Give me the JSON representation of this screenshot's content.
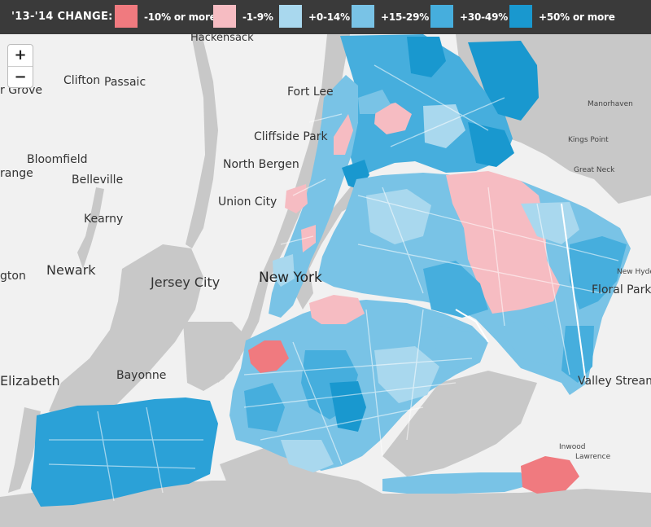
{
  "legend": {
    "title": "'13-'14 CHANGE:",
    "items": [
      {
        "label": "-10% or more",
        "color": "#f07a7f"
      },
      {
        "label": "-1-9%",
        "color": "#f6bcc2"
      },
      {
        "label": "+0-14%",
        "color": "#a9d8ee"
      },
      {
        "label": "+15-29%",
        "color": "#79c3e6"
      },
      {
        "label": "+30-49%",
        "color": "#46aedd"
      },
      {
        "label": "+50% or more",
        "color": "#1998cf"
      }
    ]
  },
  "zoom": {
    "in_label": "+",
    "out_label": "−"
  },
  "places": {
    "hackensack": "Hackensack",
    "clifton": "Clifton",
    "passaic": "Passaic",
    "grove": "r Grove",
    "fort_lee": "Fort Lee",
    "cliffside_park": "Cliffside Park",
    "bloomfield": "Bloomfield",
    "orange": "range",
    "belleville": "Belleville",
    "north_bergen": "North Bergen",
    "union_city": "Union City",
    "kearny": "Kearny",
    "newark": "Newark",
    "arlington": "gton",
    "jersey_city": "Jersey City",
    "new_york": "New York",
    "elizabeth": "Elizabeth",
    "bayonne": "Bayonne",
    "manorhaven": "Manorhaven",
    "kings_point": "Kings Point",
    "great_neck": "Great Neck",
    "new_hyde": "New Hyde",
    "floral_park": "Floral Park",
    "valley_stream": "Valley Stream",
    "inwood": "Inwood",
    "lawrence": "Lawrence"
  }
}
